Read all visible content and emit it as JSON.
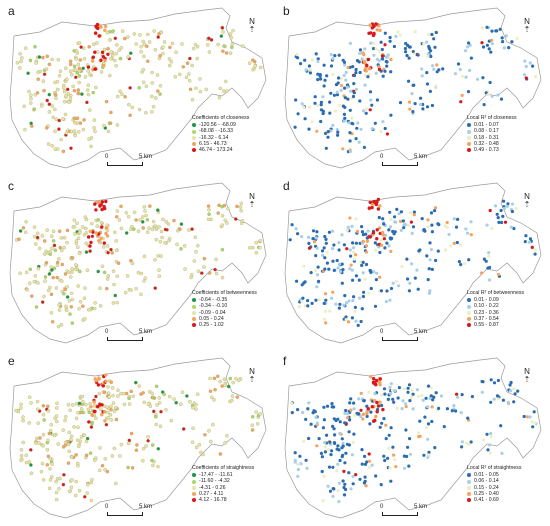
{
  "panels": [
    {
      "label": "a",
      "scheme": "div",
      "legend_title": "Coefficients of closeness",
      "legend": [
        "-120.56 - -68.09",
        "-68.08 - -16.33",
        "-16.32 - 6.14",
        "6.15 - 46.73",
        "46.74 - 173.24"
      ]
    },
    {
      "label": "b",
      "scheme": "r2",
      "legend_title": "Local R² of closeness",
      "legend": [
        "0.01 - 0.07",
        "0.08 - 0.17",
        "0.18 - 0.31",
        "0.32 - 0.48",
        "0.49 - 0.73"
      ]
    },
    {
      "label": "c",
      "scheme": "div",
      "legend_title": "Coefficients of betweenness",
      "legend": [
        "-0.64 - -0.35",
        "-0.34 - -0.10",
        "-0.09 - 0.04",
        "0.05 - 0.24",
        "0.25 - 1.02"
      ]
    },
    {
      "label": "d",
      "scheme": "r2",
      "legend_title": "Local R² of betweenness",
      "legend": [
        "0.01 - 0.09",
        "0.10 - 0.22",
        "0.23 - 0.36",
        "0.37 - 0.54",
        "0.55 - 0.87"
      ]
    },
    {
      "label": "e",
      "scheme": "div",
      "legend_title": "Coefficients of straightness",
      "legend": [
        "-17.47 - -11.61",
        "-11.60 - -4.32",
        "-4.31 - 0.26",
        "0.27 - 4.11",
        "4.12 - 16.78"
      ]
    },
    {
      "label": "f",
      "scheme": "r2",
      "legend_title": "Local R² of straightness",
      "legend": [
        "0.01 - 0.05",
        "0.06 - 0.14",
        "0.15 - 0.24",
        "0.25 - 0.40",
        "0.41 - 0.69"
      ]
    }
  ],
  "colors": {
    "div": [
      "#1a9641",
      "#a6d96a",
      "#e8e5a8",
      "#f4a460",
      "#d7191c"
    ],
    "r2": [
      "#2b6cb0",
      "#a9cfe8",
      "#eeeec4",
      "#f4a460",
      "#d7191c"
    ]
  },
  "scale": {
    "start": "0",
    "end": "5 km"
  },
  "north_label": "N"
}
